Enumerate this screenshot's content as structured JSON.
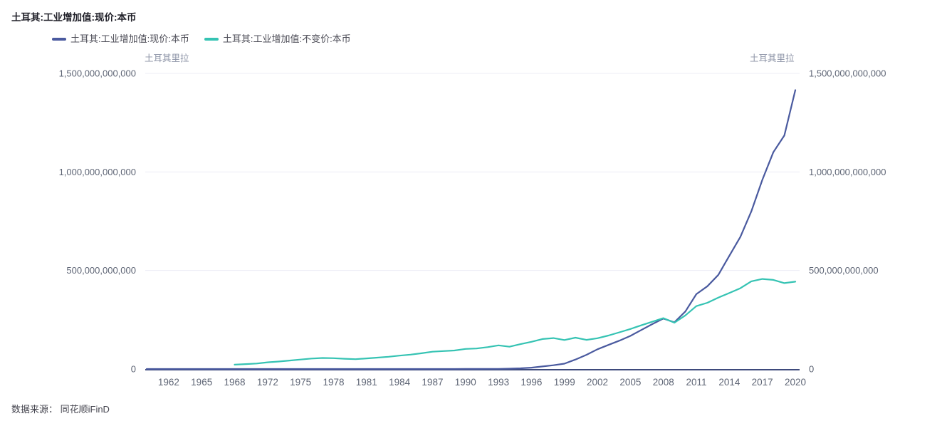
{
  "title": "土耳其:工业增加值:现价:本币",
  "legend": {
    "items": [
      {
        "id": "current-price",
        "label": "土耳其:工业增加值:现价:本币",
        "color": "#4A5A9F"
      },
      {
        "id": "constant-price",
        "label": "土耳其:工业增加值:不变价:本币",
        "color": "#35C3B3"
      }
    ]
  },
  "axes": {
    "left_unit": "土耳其里拉",
    "right_unit": "土耳其里拉",
    "y_ticks": [
      {
        "label": "0",
        "value_billions": 0
      },
      {
        "label": "500,000,000,000",
        "value_billions": 500
      },
      {
        "label": "1,000,000,000,000",
        "value_billions": 1000
      },
      {
        "label": "1,500,000,000,000",
        "value_billions": 1500
      }
    ],
    "x_ticks": [
      {
        "label": "1962",
        "index": 2
      },
      {
        "label": "1965",
        "index": 5
      },
      {
        "label": "1968",
        "index": 8
      },
      {
        "label": "1972",
        "index": 11
      },
      {
        "label": "1975",
        "index": 14
      },
      {
        "label": "1978",
        "index": 17
      },
      {
        "label": "1981",
        "index": 20
      },
      {
        "label": "1984",
        "index": 23
      },
      {
        "label": "1987",
        "index": 26
      },
      {
        "label": "1990",
        "index": 29
      },
      {
        "label": "1993",
        "index": 32
      },
      {
        "label": "1996",
        "index": 35
      },
      {
        "label": "1999",
        "index": 38
      },
      {
        "label": "2002",
        "index": 41
      },
      {
        "label": "2005",
        "index": 44
      },
      {
        "label": "2008",
        "index": 47
      },
      {
        "label": "2011",
        "index": 50
      },
      {
        "label": "2014",
        "index": 53
      },
      {
        "label": "2017",
        "index": 56
      },
      {
        "label": "2020",
        "index": 59
      }
    ]
  },
  "footer": {
    "source_label": "数据来源： 同花顺iFinD"
  },
  "chart_data": {
    "type": "line",
    "title": "土耳其:工业增加值:现价:本币",
    "xlabel": "",
    "ylabel_left": "土耳其里拉",
    "ylabel_right": "土耳其里拉",
    "ylim": [
      0,
      1500000000000
    ],
    "grid": true,
    "legend_position": "top-left",
    "value_unit": "billion TRY (1e9 土耳其里拉)",
    "x": [
      1960,
      1961,
      1962,
      1963,
      1964,
      1965,
      1966,
      1967,
      1968,
      1969,
      1970,
      1972,
      1973,
      1974,
      1975,
      1976,
      1977,
      1978,
      1979,
      1980,
      1981,
      1982,
      1983,
      1984,
      1985,
      1986,
      1987,
      1988,
      1989,
      1990,
      1991,
      1992,
      1993,
      1994,
      1995,
      1996,
      1997,
      1998,
      1999,
      2000,
      2001,
      2002,
      2003,
      2004,
      2005,
      2006,
      2007,
      2008,
      2009,
      2010,
      2011,
      2012,
      2013,
      2014,
      2015,
      2016,
      2017,
      2018,
      2019,
      2020
    ],
    "series": [
      {
        "id": "current-price",
        "name": "土耳其:工业增加值:现价:本币",
        "color": "#4A5A9F",
        "values_billions": [
          2e-05,
          2e-05,
          3e-05,
          3e-05,
          4e-05,
          5e-05,
          5e-05,
          6e-05,
          8e-05,
          0.0001,
          0.00012,
          0.0002,
          0.00025,
          0.0003,
          0.0004,
          0.0006,
          0.0008,
          0.0012,
          0.002,
          0.004,
          0.006,
          0.008,
          0.011,
          0.017,
          0.024,
          0.033,
          0.046,
          0.08,
          0.13,
          0.21,
          0.33,
          0.55,
          0.9,
          1.8,
          3.5,
          7,
          13,
          19,
          27,
          48,
          72,
          100,
          122,
          144,
          168,
          198,
          228,
          256,
          237,
          292,
          380,
          420,
          478,
          575,
          670,
          800,
          960,
          1100,
          1185,
          1415
        ]
      },
      {
        "id": "constant-price",
        "name": "土耳其:工业增加值:不变价:本币",
        "color": "#35C3B3",
        "values_billions": [
          null,
          null,
          null,
          null,
          null,
          null,
          null,
          null,
          22,
          25,
          28,
          34,
          38,
          43,
          48,
          53,
          56,
          55,
          52,
          50,
          54,
          58,
          62,
          68,
          73,
          80,
          88,
          91,
          94,
          102,
          104,
          111,
          120,
          113,
          126,
          138,
          152,
          157,
          147,
          159,
          148,
          156,
          170,
          186,
          203,
          222,
          240,
          258,
          235,
          272,
          319,
          336,
          362,
          386,
          410,
          445,
          457,
          452,
          436,
          443
        ]
      }
    ]
  }
}
